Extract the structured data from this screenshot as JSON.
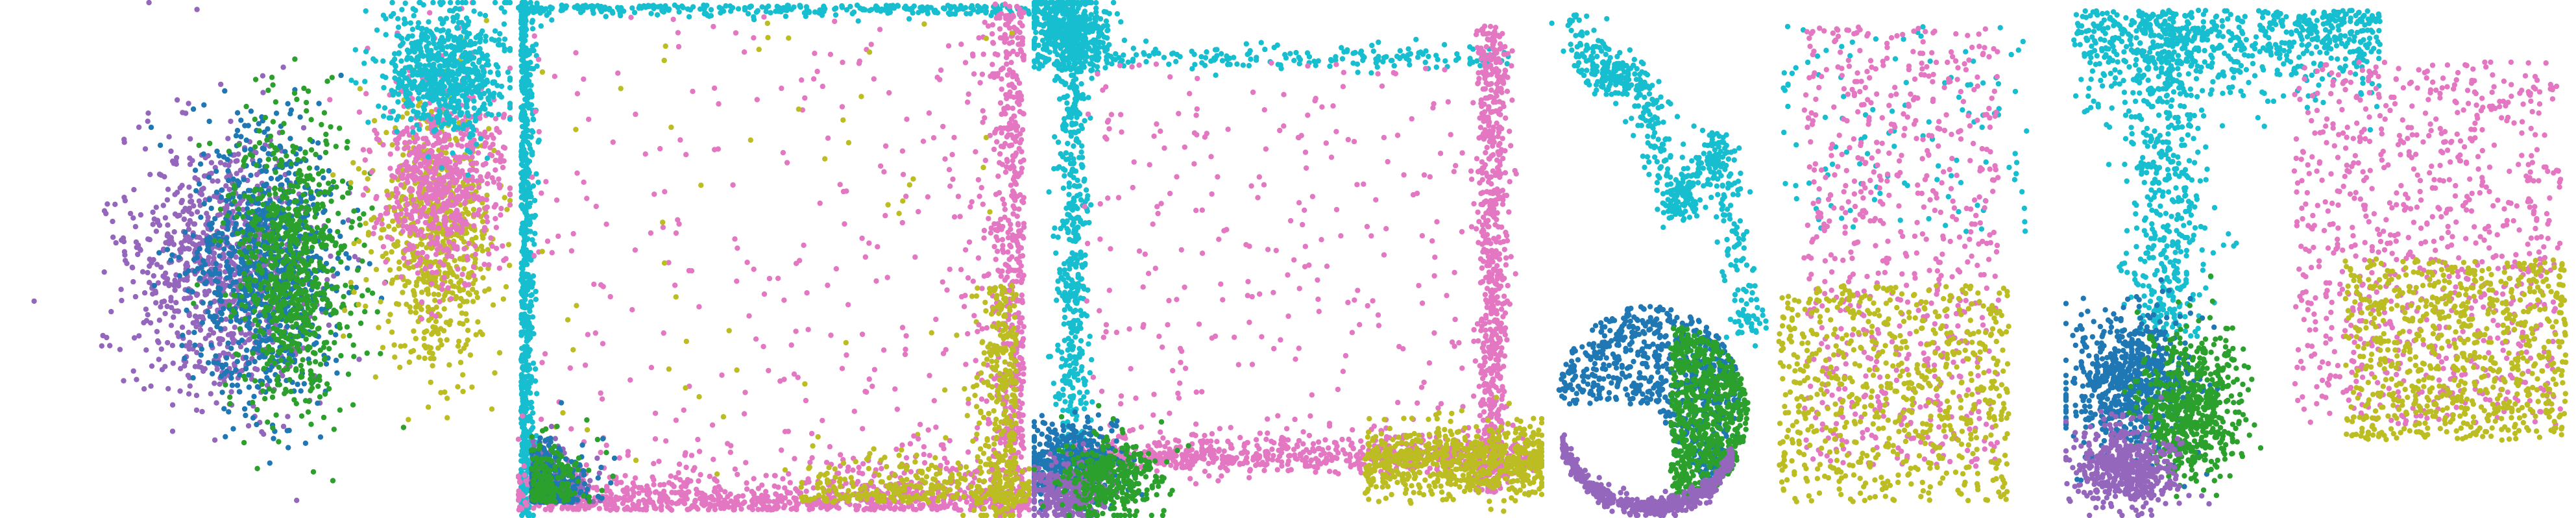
{
  "figure": {
    "colors": {
      "purple": "#9467bd",
      "blue": "#1f77b4",
      "green": "#2ca02c",
      "cyan": "#17becf",
      "pink": "#e377c2",
      "olive": "#bcbd22"
    }
  },
  "chart_data": [
    {
      "type": "scatter",
      "panel": 1,
      "title": "",
      "xlabel": "",
      "ylabel": "",
      "xlim": [
        0,
        1
      ],
      "ylim": [
        0,
        1
      ],
      "grid": false,
      "clusters": [
        {
          "color": "purple",
          "center": [
            0.43,
            0.52
          ],
          "spread": [
            0.09,
            0.13
          ],
          "shape": "gauss",
          "n": 900
        },
        {
          "color": "blue",
          "center": [
            0.52,
            0.52
          ],
          "spread": [
            0.07,
            0.13
          ],
          "shape": "gauss",
          "n": 900
        },
        {
          "color": "green",
          "center": [
            0.57,
            0.52
          ],
          "spread": [
            0.06,
            0.14
          ],
          "shape": "gauss",
          "n": 800
        },
        {
          "color": "olive",
          "center": [
            0.85,
            0.45
          ],
          "spread": [
            0.06,
            0.12
          ],
          "shape": "gauss",
          "n": 700
        },
        {
          "color": "pink",
          "center": [
            0.86,
            0.34
          ],
          "spread": [
            0.06,
            0.1
          ],
          "shape": "gauss",
          "n": 700
        },
        {
          "color": "cyan",
          "center": [
            0.87,
            0.14
          ],
          "spread": [
            0.06,
            0.06
          ],
          "shape": "gauss",
          "n": 700
        }
      ]
    },
    {
      "type": "scatter",
      "panel": 2,
      "title": "",
      "xlabel": "",
      "ylabel": "",
      "xlim": [
        0,
        1
      ],
      "ylim": [
        0,
        1
      ],
      "grid": false,
      "clusters": [
        {
          "color": "cyan",
          "shape": "left-edge",
          "n": 700
        },
        {
          "color": "cyan",
          "shape": "top-edge",
          "n": 300
        },
        {
          "color": "pink",
          "shape": "bottom-edge",
          "n": 900
        },
        {
          "color": "pink",
          "shape": "right-edge",
          "n": 600
        },
        {
          "color": "olive",
          "shape": "bottom-right",
          "n": 600
        },
        {
          "color": "pink",
          "shape": "uniform",
          "n": 250
        },
        {
          "color": "olive",
          "shape": "uniform",
          "n": 60
        },
        {
          "color": "purple",
          "shape": "corner-bl",
          "n": 300
        },
        {
          "color": "blue",
          "shape": "corner-bl",
          "n": 300
        },
        {
          "color": "green",
          "shape": "corner-bl",
          "n": 200
        }
      ]
    },
    {
      "type": "scatter",
      "panel": 3,
      "title": "",
      "xlabel": "",
      "ylabel": "",
      "xlim": [
        0,
        1
      ],
      "ylim": [
        0,
        1
      ],
      "grid": false,
      "clusters": [
        {
          "color": "cyan",
          "center": [
            0.07,
            0.06
          ],
          "spread": [
            0.04,
            0.04
          ],
          "shape": "gauss",
          "n": 500
        },
        {
          "color": "cyan",
          "shape": "left-line",
          "n": 500
        },
        {
          "color": "cyan",
          "shape": "top-line",
          "n": 200
        },
        {
          "color": "pink",
          "shape": "right-line",
          "n": 700
        },
        {
          "color": "pink",
          "shape": "bottom-line",
          "n": 700
        },
        {
          "color": "pink",
          "shape": "inside",
          "n": 300
        },
        {
          "color": "olive",
          "shape": "bottom-right-blob",
          "n": 700
        },
        {
          "color": "blue",
          "center": [
            0.08,
            0.9
          ],
          "spread": [
            0.05,
            0.04
          ],
          "shape": "gauss",
          "n": 500
        },
        {
          "color": "purple",
          "center": [
            0.07,
            0.95
          ],
          "spread": [
            0.04,
            0.03
          ],
          "shape": "gauss",
          "n": 300
        },
        {
          "color": "green",
          "center": [
            0.15,
            0.92
          ],
          "spread": [
            0.05,
            0.04
          ],
          "shape": "gauss",
          "n": 350
        }
      ]
    },
    {
      "type": "scatter",
      "panel": 4,
      "title": "",
      "xlabel": "",
      "ylabel": "",
      "xlim": [
        0,
        1
      ],
      "ylim": [
        0,
        1
      ],
      "grid": false,
      "clusters": [
        {
          "color": "cyan",
          "shape": "squiggle-top-left",
          "n": 600
        },
        {
          "color": "cyan",
          "shape": "upper-right-scatter",
          "n": 120
        },
        {
          "color": "blue",
          "shape": "circle-top",
          "n": 700
        },
        {
          "color": "green",
          "shape": "circle-right",
          "n": 700
        },
        {
          "color": "purple",
          "shape": "circle-bottom",
          "n": 500
        },
        {
          "color": "pink",
          "shape": "right-column",
          "n": 700
        },
        {
          "color": "olive",
          "shape": "lower-right",
          "n": 700
        }
      ]
    },
    {
      "type": "scatter",
      "panel": 5,
      "title": "",
      "xlabel": "",
      "ylabel": "",
      "xlim": [
        0,
        1
      ],
      "ylim": [
        0,
        1
      ],
      "grid": false,
      "clusters": [
        {
          "color": "cyan",
          "shape": "top-band",
          "n": 700
        },
        {
          "color": "cyan",
          "shape": "left-column",
          "n": 500
        },
        {
          "color": "pink",
          "shape": "right-cloud",
          "n": 900
        },
        {
          "color": "olive",
          "shape": "right-low",
          "n": 800
        },
        {
          "color": "blue",
          "center": [
            0.13,
            0.74
          ],
          "spread": [
            0.06,
            0.07
          ],
          "shape": "gauss",
          "n": 700
        },
        {
          "color": "green",
          "center": [
            0.25,
            0.78
          ],
          "spread": [
            0.05,
            0.07
          ],
          "shape": "gauss",
          "n": 600
        },
        {
          "color": "purple",
          "center": [
            0.12,
            0.9
          ],
          "spread": [
            0.05,
            0.04
          ],
          "shape": "gauss",
          "n": 500
        }
      ]
    }
  ]
}
